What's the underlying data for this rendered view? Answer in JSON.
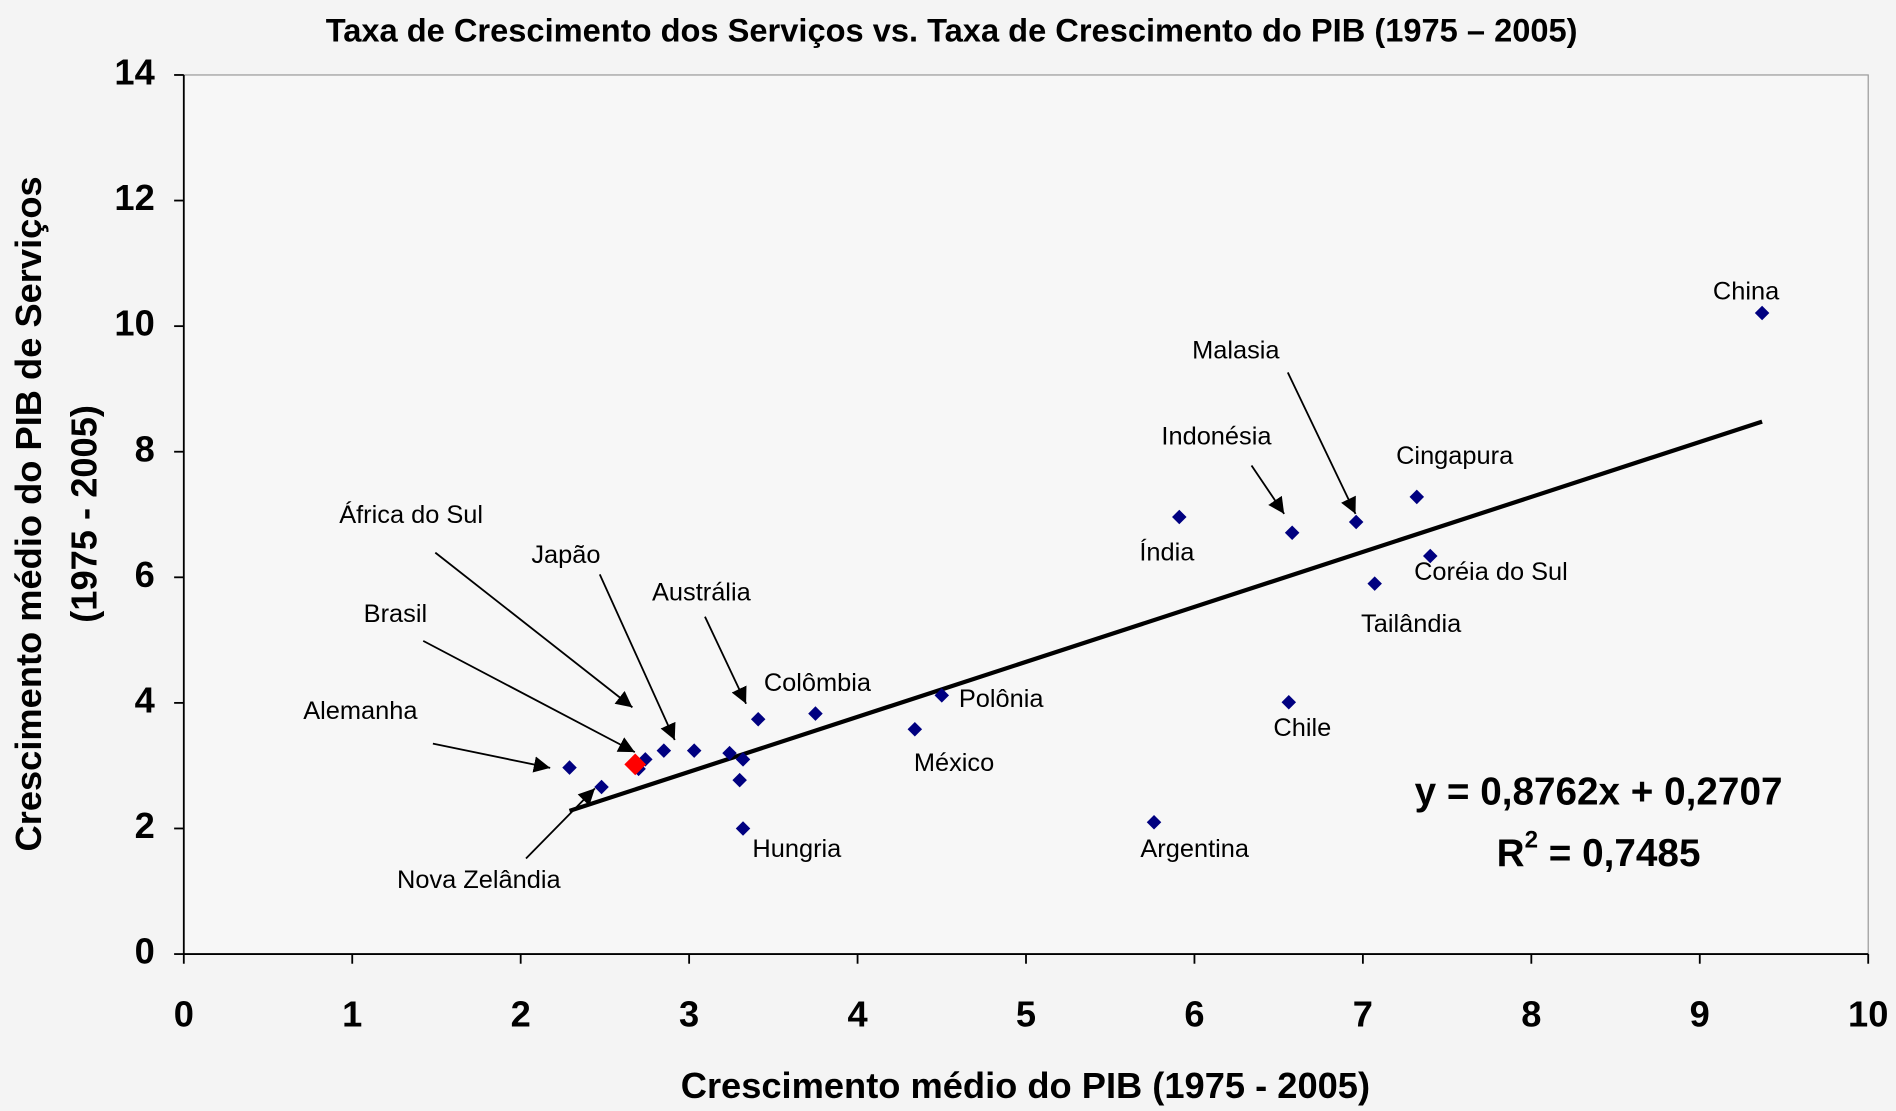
{
  "chart_data": {
    "type": "scatter",
    "title": "Taxa de Crescimento dos Serviços vs. Taxa de Crescimento do PIB (1975 – 2005)",
    "xlabel": "Crescimento médio do PIB (1975 - 2005)",
    "ylabel": [
      "Crescimento médio do PIB de Serviços",
      "(1975 - 2005)"
    ],
    "xlim": [
      0,
      10
    ],
    "ylim": [
      0,
      14
    ],
    "xticks": [
      0,
      1,
      2,
      3,
      4,
      5,
      6,
      7,
      8,
      9,
      10
    ],
    "yticks": [
      0,
      2,
      4,
      6,
      8,
      10,
      12,
      14
    ],
    "grid": false,
    "series": [
      {
        "color": "#000080",
        "x": [
          9.37,
          6.96,
          6.58,
          5.91,
          7.32,
          7.4,
          7.07,
          6.56,
          5.76,
          4.34,
          4.5,
          3.75,
          3.41,
          3.32,
          3.3,
          3.32,
          3.24,
          3.03,
          2.85,
          2.74,
          2.7,
          2.29,
          2.48
        ],
        "values": [
          10.21,
          6.88,
          6.71,
          6.96,
          7.28,
          6.34,
          5.9,
          4.01,
          2.1,
          3.58,
          4.12,
          3.83,
          3.74,
          2.0,
          2.77,
          3.1,
          3.2,
          3.24,
          3.24,
          3.1,
          2.95,
          2.97,
          2.66
        ],
        "labels": [
          "China",
          "Malasia",
          "Indonésia",
          "Índia",
          "Cingapura",
          "Coréia do Sul",
          "Tailândia",
          "Chile",
          "Argentina",
          "México",
          "Polônia",
          "Colômbia",
          "Austrália",
          "Hungria",
          null,
          null,
          null,
          null,
          "Japão",
          "África do Sul",
          null,
          "Alemanha",
          "Nova Zelândia"
        ]
      },
      {
        "color": "#ff0000",
        "x": [
          2.68
        ],
        "values": [
          3.02
        ],
        "labels": [
          "Brasil"
        ]
      }
    ],
    "trendline": {
      "color": "#000000",
      "x": [
        2.29,
        9.37
      ],
      "values": [
        2.28,
        8.48
      ],
      "equation": "y = 0,8762x + 0,2707",
      "r2": {
        "base": "R",
        "sup": "2",
        "rest": " = 0,7485"
      }
    }
  }
}
